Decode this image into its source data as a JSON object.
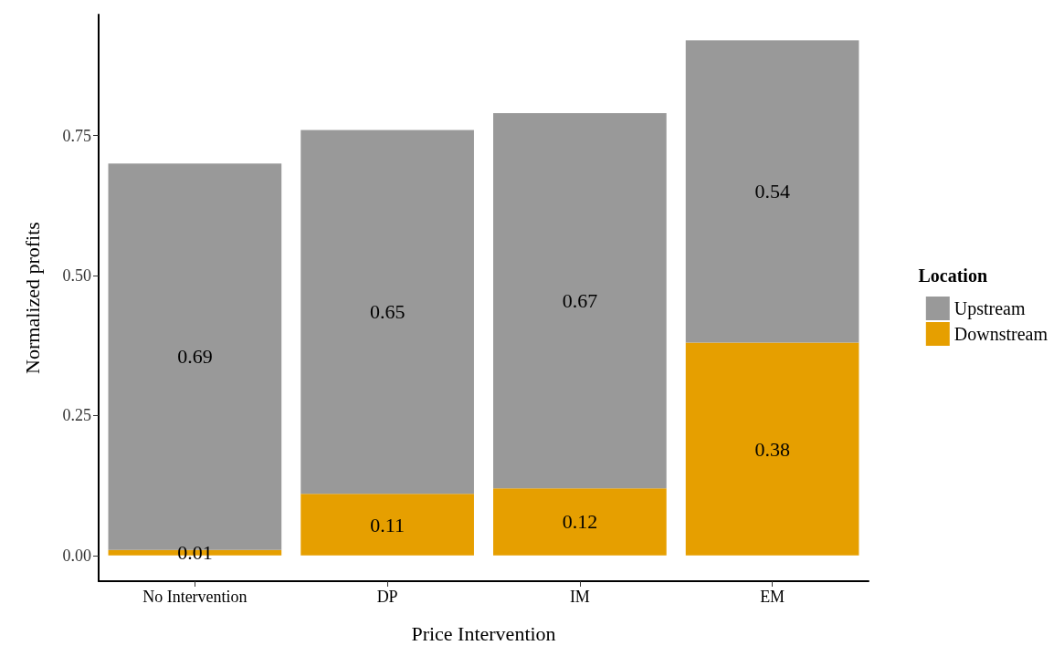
{
  "chart_data": {
    "type": "bar",
    "xlabel": "Price Intervention",
    "ylabel": "Normalized profits",
    "legend_title": "Location",
    "categories": [
      "No Intervention",
      "DP",
      "IM",
      "EM"
    ],
    "series": [
      {
        "name": "Downstream",
        "color": "#e69f00",
        "values": [
          0.01,
          0.11,
          0.12,
          0.38
        ]
      },
      {
        "name": "Upstream",
        "color": "#999999",
        "values": [
          0.69,
          0.65,
          0.67,
          0.54
        ]
      }
    ],
    "stacked": true,
    "data_labels": true,
    "legend": "right",
    "grid": false,
    "ylim": [
      -0.046,
      0.966
    ],
    "yticks": [
      {
        "value": 0,
        "label": "0.00"
      },
      {
        "value": 0.25,
        "label": "0.25"
      },
      {
        "value": 0.5,
        "label": "0.50"
      },
      {
        "value": 0.75,
        "label": "0.75"
      }
    ]
  }
}
